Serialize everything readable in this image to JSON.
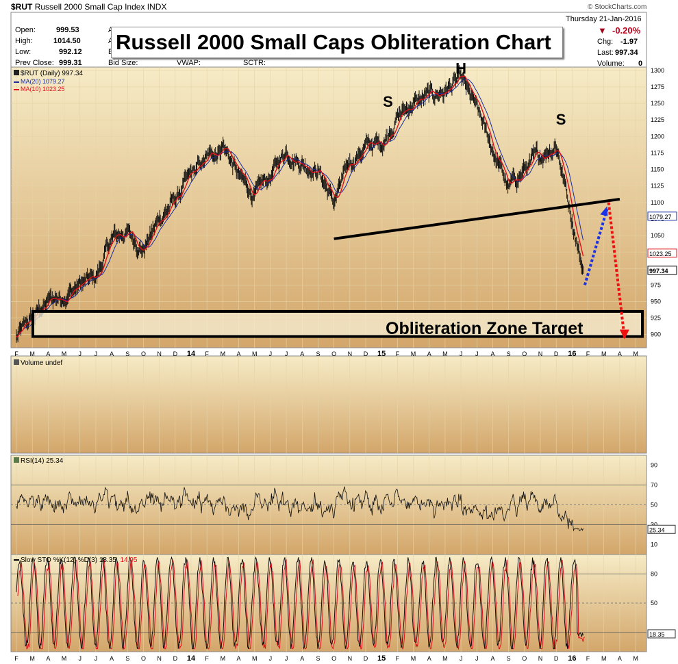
{
  "header": {
    "symbol": "$RUT",
    "name": "Russell 2000 Small Cap Index",
    "exchange": "INDX",
    "watermark": "© StockCharts.com",
    "date": "Thursday  21-Jan-2016",
    "change_pct": "-0.20%",
    "chg_label": "Chg:",
    "chg_value": "-1.97",
    "last_label": "Last:",
    "last_value": "997.34",
    "volume_label": "Volume:",
    "volume_value": "0",
    "open_label": "Open:",
    "open_value": "999.53",
    "high_label": "High:",
    "high_value": "1014.50",
    "low_label": "Low:",
    "low_value": "992.12",
    "prev_label": "Prev Close:",
    "prev_value": "999.31",
    "ask_cut": "A",
    "ask_cut2": "A",
    "bid_cut": "Bi",
    "bid_size": "Bid Size:",
    "vwap": "VWAP:",
    "sctr": "SCTR:"
  },
  "colors": {
    "panel_top": "#f6ebc6",
    "panel_bottom": "#d3a66a",
    "ma20": "#1a2a9e",
    "ma10": "#e0101a",
    "annot_blue": "#1a33e6",
    "annot_red": "#ee1111",
    "price_red": "#c0001a"
  },
  "chart_data": [
    {
      "type": "line",
      "panel": "price",
      "title": "Russell 2000 Small Caps Obliteration Chart",
      "legend": [
        "$RUT (Daily) 997.34",
        "MA(20) 1079.27",
        "MA(10) 1023.25"
      ],
      "ylim": [
        880,
        1305
      ],
      "y_ticks": [
        900,
        925,
        950,
        975,
        1000,
        1025,
        1050,
        1075,
        1100,
        1125,
        1150,
        1175,
        1200,
        1225,
        1250,
        1275,
        1300
      ],
      "last_labels": {
        "ma20": "1079.27",
        "ma10": "1023.25",
        "price": "997.34"
      },
      "x_ticks": [
        "F",
        "M",
        "A",
        "M",
        "J",
        "J",
        "A",
        "S",
        "O",
        "N",
        "D",
        "14",
        "F",
        "M",
        "A",
        "M",
        "J",
        "J",
        "A",
        "S",
        "O",
        "N",
        "D",
        "15",
        "F",
        "M",
        "A",
        "M",
        "J",
        "J",
        "A",
        "S",
        "O",
        "N",
        "D",
        "16",
        "F",
        "M",
        "A",
        "M"
      ],
      "series": [
        {
          "name": "$RUT",
          "months": [
            0,
            1,
            2,
            3,
            4,
            5,
            6,
            7,
            8,
            9,
            10,
            11,
            12,
            13,
            14,
            15,
            16,
            17,
            18,
            19,
            20,
            21,
            22,
            23,
            24,
            25,
            26,
            27,
            28,
            29,
            30,
            31,
            32,
            33,
            34,
            35.7
          ],
          "values": [
            895,
            925,
            950,
            960,
            975,
            985,
            1045,
            1055,
            1030,
            1075,
            1105,
            1140,
            1165,
            1190,
            1140,
            1110,
            1140,
            1180,
            1160,
            1150,
            1100,
            1160,
            1185,
            1190,
            1230,
            1250,
            1260,
            1270,
            1285,
            1240,
            1180,
            1120,
            1150,
            1170,
            1190,
            997.34
          ]
        }
      ],
      "annotations": [
        {
          "text": "S",
          "month": 23.4,
          "value": 1245
        },
        {
          "text": "H",
          "month": 28,
          "value": 1295
        },
        {
          "text": "S",
          "month": 34.3,
          "value": 1218
        },
        {
          "text": "Obliteration Zone Target",
          "box": [
            935,
            897
          ]
        },
        {
          "neckline": [
            [
              20,
              1045
            ],
            [
              38,
              1105
            ]
          ]
        }
      ]
    },
    {
      "type": "bar",
      "panel": "volume",
      "legend": "Volume undef"
    },
    {
      "type": "line",
      "panel": "rsi",
      "legend": "RSI(14) 25.34",
      "ylim": [
        0,
        100
      ],
      "y_ticks": [
        10,
        30,
        50,
        70,
        90
      ],
      "last": "25.34"
    },
    {
      "type": "line",
      "panel": "stochastic",
      "legend_k": "Slow STO %K(12) %D(3) 18.35,",
      "legend_d": "14.95",
      "y_ticks": [
        20,
        50,
        80
      ],
      "last": "18.35"
    }
  ]
}
